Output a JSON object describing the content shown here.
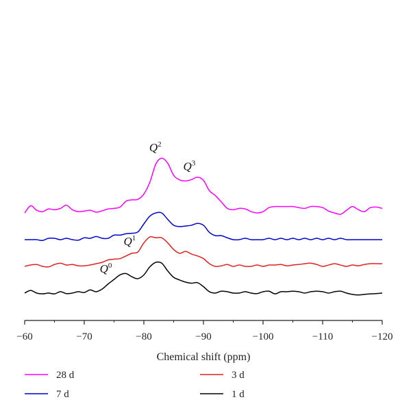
{
  "chart_data": {
    "type": "line",
    "xlabel": "Chemical shift (ppm)",
    "ylabel": "",
    "xlim": [
      -60,
      -120
    ],
    "x_ticks": [
      -60,
      -70,
      -80,
      -90,
      -100,
      -110,
      -120
    ],
    "x_tick_labels": [
      "−60",
      "−70",
      "−80",
      "−90",
      "−100",
      "−110",
      "−120"
    ],
    "y_axis_visible": false,
    "grid": false,
    "legend_placement": "bottom",
    "annotations": [
      {
        "text": "Q",
        "sup": "2",
        "x": -82.5,
        "series": "28 d"
      },
      {
        "text": "Q",
        "sup": "3",
        "x": -88.2,
        "series": "28 d"
      },
      {
        "text": "Q",
        "sup": "1",
        "x": -78.2,
        "series": "3 d"
      },
      {
        "text": "Q",
        "sup": "0",
        "x": -74.2,
        "series": "1 d"
      }
    ],
    "series": [
      {
        "name": "28 d",
        "color": "#ff00ff",
        "offset": 3,
        "x": [
          -60,
          -61,
          -62,
          -63,
          -64,
          -65,
          -66,
          -67,
          -68,
          -69,
          -70,
          -71,
          -72,
          -73,
          -74,
          -75,
          -76,
          -77,
          -78,
          -79,
          -80,
          -81,
          -82,
          -83,
          -84,
          -85,
          -86,
          -87,
          -88,
          -89,
          -90,
          -91,
          -92,
          -93,
          -94,
          -95,
          -96,
          -97,
          -98,
          -99,
          -100,
          -101,
          -102,
          -103,
          -104,
          -105,
          -106,
          -107,
          -108,
          -109,
          -110,
          -111,
          -112,
          -113,
          -114,
          -115,
          -116,
          -117,
          -118,
          -119,
          -120
        ],
        "y": [
          0.0,
          0.27,
          0.1,
          0.05,
          0.15,
          0.12,
          0.17,
          0.29,
          0.12,
          0.05,
          0.07,
          0.1,
          0.03,
          0.08,
          0.15,
          0.17,
          0.22,
          0.44,
          0.49,
          0.51,
          0.71,
          1.15,
          1.83,
          2.05,
          1.86,
          1.41,
          1.24,
          1.2,
          1.25,
          1.34,
          1.22,
          0.83,
          0.65,
          0.41,
          0.17,
          0.12,
          0.17,
          0.15,
          0.05,
          0.0,
          0.05,
          0.2,
          0.24,
          0.24,
          0.24,
          0.24,
          0.2,
          0.17,
          0.24,
          0.24,
          0.2,
          0.07,
          0.0,
          -0.05,
          0.1,
          0.24,
          0.12,
          0.05,
          0.2,
          0.22,
          0.17
        ]
      },
      {
        "name": "7 d",
        "color": "#0000cc",
        "offset": 2,
        "x": [
          -60,
          -61,
          -62,
          -63,
          -64,
          -65,
          -66,
          -67,
          -68,
          -69,
          -70,
          -71,
          -72,
          -73,
          -74,
          -75,
          -76,
          -77,
          -78,
          -79,
          -80,
          -81,
          -82,
          -83,
          -84,
          -85,
          -86,
          -87,
          -88,
          -89,
          -90,
          -91,
          -92,
          -93,
          -94,
          -95,
          -96,
          -97,
          -98,
          -99,
          -100,
          -101,
          -102,
          -103,
          -104,
          -105,
          -106,
          -107,
          -108,
          -109,
          -110,
          -111,
          -112,
          -113,
          -114,
          -115,
          -116,
          -117,
          -118,
          -119,
          -120
        ],
        "y": [
          0.0,
          0.0,
          0.0,
          -0.03,
          0.05,
          0.05,
          0.0,
          0.05,
          0.0,
          -0.02,
          0.07,
          0.05,
          0.12,
          0.05,
          0.05,
          0.17,
          0.17,
          0.22,
          0.24,
          0.29,
          0.59,
          0.88,
          1.0,
          1.0,
          0.76,
          0.54,
          0.49,
          0.51,
          0.54,
          0.61,
          0.54,
          0.27,
          0.15,
          0.15,
          0.07,
          0.0,
          0.0,
          0.05,
          0.0,
          0.0,
          0.0,
          0.05,
          0.0,
          0.05,
          0.0,
          0.05,
          0.0,
          0.05,
          0.0,
          0.05,
          0.0,
          0.05,
          0.0,
          0.05,
          0.0,
          0.0,
          0.0,
          0.0,
          0.0,
          0.0,
          0.0
        ]
      },
      {
        "name": "3 d",
        "color": "#dd2222",
        "offset": 1,
        "x": [
          -60,
          -61,
          -62,
          -63,
          -64,
          -65,
          -66,
          -67,
          -68,
          -69,
          -70,
          -71,
          -72,
          -73,
          -74,
          -75,
          -76,
          -77,
          -78,
          -79,
          -80,
          -81,
          -82,
          -83,
          -84,
          -85,
          -86,
          -87,
          -88,
          -89,
          -90,
          -91,
          -92,
          -93,
          -94,
          -95,
          -96,
          -97,
          -98,
          -99,
          -100,
          -101,
          -102,
          -103,
          -104,
          -105,
          -106,
          -107,
          -108,
          -109,
          -110,
          -111,
          -112,
          -113,
          -114,
          -115,
          -116,
          -117,
          -118,
          -119,
          -120
        ],
        "y": [
          0.0,
          0.05,
          0.07,
          0.0,
          -0.02,
          0.07,
          0.12,
          0.05,
          0.07,
          0.02,
          0.02,
          0.05,
          0.1,
          0.15,
          0.24,
          0.27,
          0.29,
          0.39,
          0.49,
          0.54,
          0.88,
          1.1,
          1.07,
          1.07,
          0.88,
          0.63,
          0.49,
          0.56,
          0.46,
          0.39,
          0.29,
          0.1,
          0.0,
          0.02,
          0.07,
          0.0,
          0.05,
          0.0,
          0.0,
          0.05,
          0.0,
          0.05,
          0.05,
          0.07,
          0.02,
          0.05,
          0.07,
          0.1,
          0.12,
          0.07,
          0.0,
          0.05,
          0.1,
          0.05,
          0.0,
          0.05,
          0.02,
          0.07,
          0.1,
          0.1,
          0.1
        ]
      },
      {
        "name": "1 d",
        "color": "#000000",
        "offset": 0,
        "x": [
          -60,
          -61,
          -62,
          -63,
          -64,
          -65,
          -66,
          -67,
          -68,
          -69,
          -70,
          -71,
          -72,
          -73,
          -74,
          -75,
          -76,
          -77,
          -78,
          -79,
          -80,
          -81,
          -82,
          -83,
          -84,
          -85,
          -86,
          -87,
          -88,
          -89,
          -90,
          -91,
          -92,
          -93,
          -94,
          -95,
          -96,
          -97,
          -98,
          -99,
          -100,
          -101,
          -102,
          -103,
          -104,
          -105,
          -106,
          -107,
          -108,
          -109,
          -110,
          -111,
          -112,
          -113,
          -114,
          -115,
          -116,
          -117,
          -118,
          -119,
          -120
        ],
        "y": [
          0.0,
          0.1,
          0.0,
          -0.03,
          0.0,
          -0.03,
          0.05,
          -0.02,
          0.0,
          0.05,
          0.02,
          0.12,
          0.05,
          0.15,
          0.34,
          0.51,
          0.68,
          0.73,
          0.61,
          0.54,
          0.68,
          0.98,
          1.15,
          1.12,
          0.83,
          0.59,
          0.49,
          0.41,
          0.37,
          0.39,
          0.24,
          0.05,
          0.0,
          0.07,
          0.05,
          0.0,
          0.0,
          0.05,
          0.0,
          -0.02,
          0.05,
          0.07,
          -0.03,
          0.05,
          0.05,
          0.07,
          0.05,
          0.0,
          0.05,
          0.07,
          0.05,
          0.0,
          0.05,
          0.07,
          0.0,
          -0.05,
          -0.07,
          -0.05,
          -0.03,
          -0.02,
          0.0
        ]
      }
    ]
  },
  "legend": [
    {
      "label": "28 d",
      "color": "#ff00ff"
    },
    {
      "label": "7 d",
      "color": "#0000cc"
    },
    {
      "label": "3 d",
      "color": "#dd2222"
    },
    {
      "label": "1 d",
      "color": "#000000"
    }
  ]
}
